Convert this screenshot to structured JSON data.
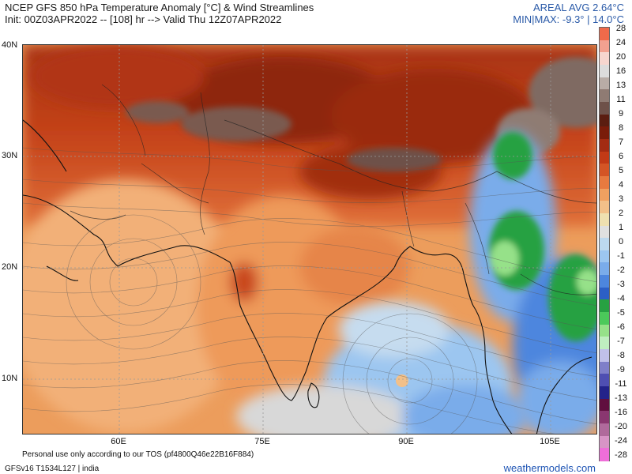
{
  "header": {
    "title_line1": "NCEP GFS 850 hPa Temperature Anomaly [°C] & Wind Streamlines",
    "title_line2": "Init: 00Z03APR2022 -- [108] hr --> Valid Thu 12Z07APR2022",
    "areal_avg": "AREAL AVG 2.64°C",
    "min_max": "MIN|MAX: -9.3° | 14.0°C"
  },
  "axes": {
    "lat_labels": [
      "40N",
      "30N",
      "20N",
      "10N"
    ],
    "lon_labels": [
      "60E",
      "75E",
      "90E",
      "105E"
    ]
  },
  "colorbar": {
    "labels": [
      "28",
      "24",
      "20",
      "16",
      "13",
      "11",
      "9",
      "8",
      "7",
      "6",
      "5",
      "4",
      "3",
      "2",
      "1",
      "0",
      "-1",
      "-2",
      "-3",
      "-4",
      "-5",
      "-6",
      "-7",
      "-8",
      "-9",
      "-11",
      "-13",
      "-16",
      "-20",
      "-24",
      "-28"
    ],
    "colors": [
      "#f06a4a",
      "#f1a190",
      "#f6d6cf",
      "#dcdcdc",
      "#b8aca6",
      "#8f7b73",
      "#6e5149",
      "#5b1d10",
      "#7a1c0a",
      "#a32b12",
      "#c23a16",
      "#d45525",
      "#e77a3f",
      "#f0a060",
      "#f2c089",
      "#efe0b0",
      "#e0e0e0",
      "#bcd8ee",
      "#9cc6f0",
      "#7aacea",
      "#4d86de",
      "#2c5fc6",
      "#27a142",
      "#4bc95a",
      "#96e189",
      "#bfeec0",
      "#c0c0ea",
      "#7f7fc9",
      "#4f4fb2",
      "#23238a",
      "#600f3f",
      "#8a3770",
      "#b06a9c",
      "#d894c6",
      "#ee6ed8"
    ]
  },
  "footer": {
    "tos": "Personal use only according to our TOS (pf4800Q46e22B16F884)",
    "model": "GFSv16 T1534L127 | india",
    "brand": "weathermodels.com"
  }
}
